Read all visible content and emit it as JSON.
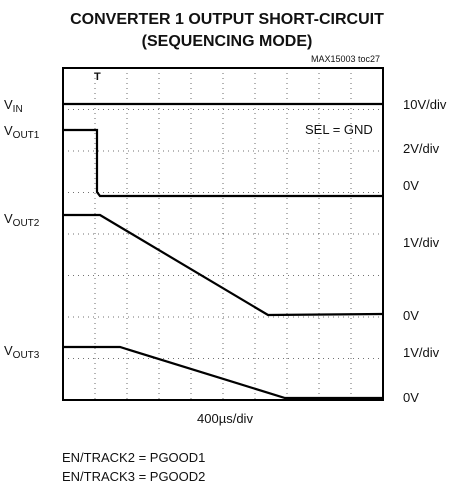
{
  "title": [
    "CONVERTER 1 OUTPUT SHORT-CIRCUIT",
    "(SEQUENCING MODE)"
  ],
  "figure_id": "MAX15003 toc27",
  "traces": [
    {
      "symbol": "V",
      "sub": "IN",
      "scale": "10V/div"
    },
    {
      "symbol": "V",
      "sub": "OUT1",
      "scale": "2V/div",
      "zero": "0V"
    },
    {
      "symbol": "V",
      "sub": "OUT2",
      "scale": "1V/div",
      "zero": "0V"
    },
    {
      "symbol": "V",
      "sub": "OUT3",
      "scale": "1V/div",
      "zero": "0V"
    }
  ],
  "annotation": "SEL = GND",
  "timebase": "400µs/div",
  "notes": [
    "EN/TRACK2 = PGOOD1",
    "EN/TRACK3 = PGOOD2"
  ]
}
